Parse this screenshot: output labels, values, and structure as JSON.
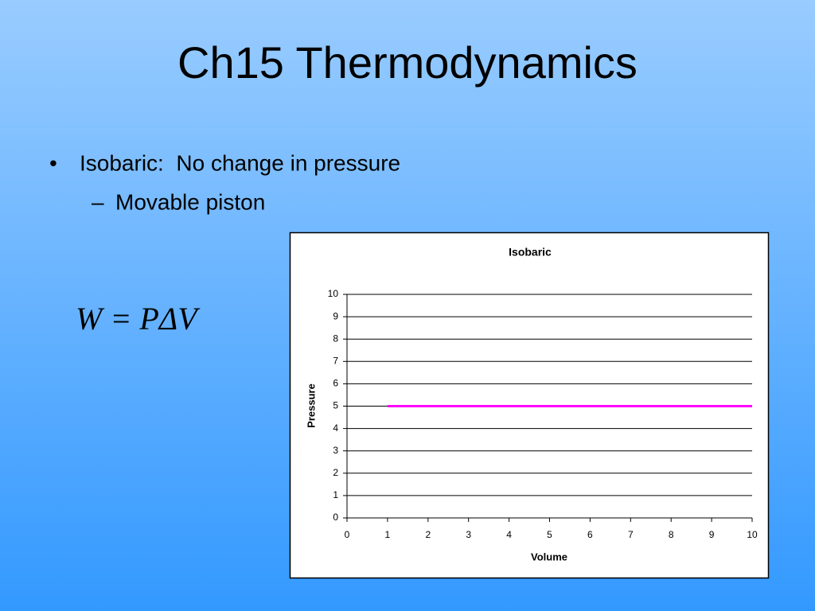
{
  "title": "Ch15 Thermodynamics",
  "bullets": [
    "Isobaric:  No change in pressure",
    "Movable piston"
  ],
  "equation": "W = PΔV",
  "chart_data": {
    "type": "line",
    "title": "Isobaric",
    "x_label": "Volume",
    "y_label": "Pressure",
    "x": [
      1,
      10
    ],
    "series": [
      {
        "name": "Isobaric",
        "color": "#ff00ff",
        "values": [
          5,
          5
        ]
      }
    ],
    "xlim": [
      0,
      10
    ],
    "xticks": [
      0,
      1,
      2,
      3,
      4,
      5,
      6,
      7,
      8,
      9,
      10
    ],
    "ylim": [
      0,
      10
    ],
    "yticks": [
      0,
      1,
      2,
      3,
      4,
      5,
      6,
      7,
      8,
      9,
      10
    ],
    "grid": true,
    "legend": false
  }
}
